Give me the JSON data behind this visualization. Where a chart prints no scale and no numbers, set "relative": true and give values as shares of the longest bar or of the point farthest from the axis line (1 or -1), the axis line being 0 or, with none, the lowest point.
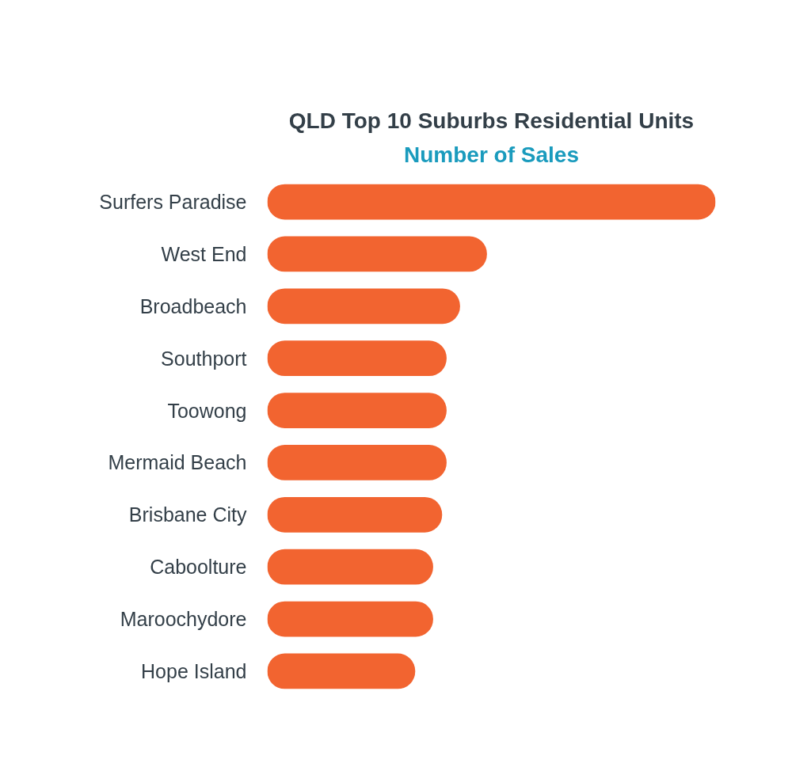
{
  "chart_data": {
    "type": "bar",
    "orientation": "horizontal",
    "relative": true,
    "title": "QLD Top 10 Suburbs Residential Units",
    "subtitle": "Number of Sales",
    "categories": [
      "Surfers Paradise",
      "West End",
      "Broadbeach",
      "Southport",
      "Toowong",
      "Mermaid Beach",
      "Brisbane City",
      "Caboolture",
      "Maroochydore",
      "Hope Island"
    ],
    "values": [
      1,
      0.49,
      0.43,
      0.4,
      0.4,
      0.4,
      0.39,
      0.37,
      0.37,
      0.33
    ],
    "color": "#f26430",
    "grid": false
  }
}
